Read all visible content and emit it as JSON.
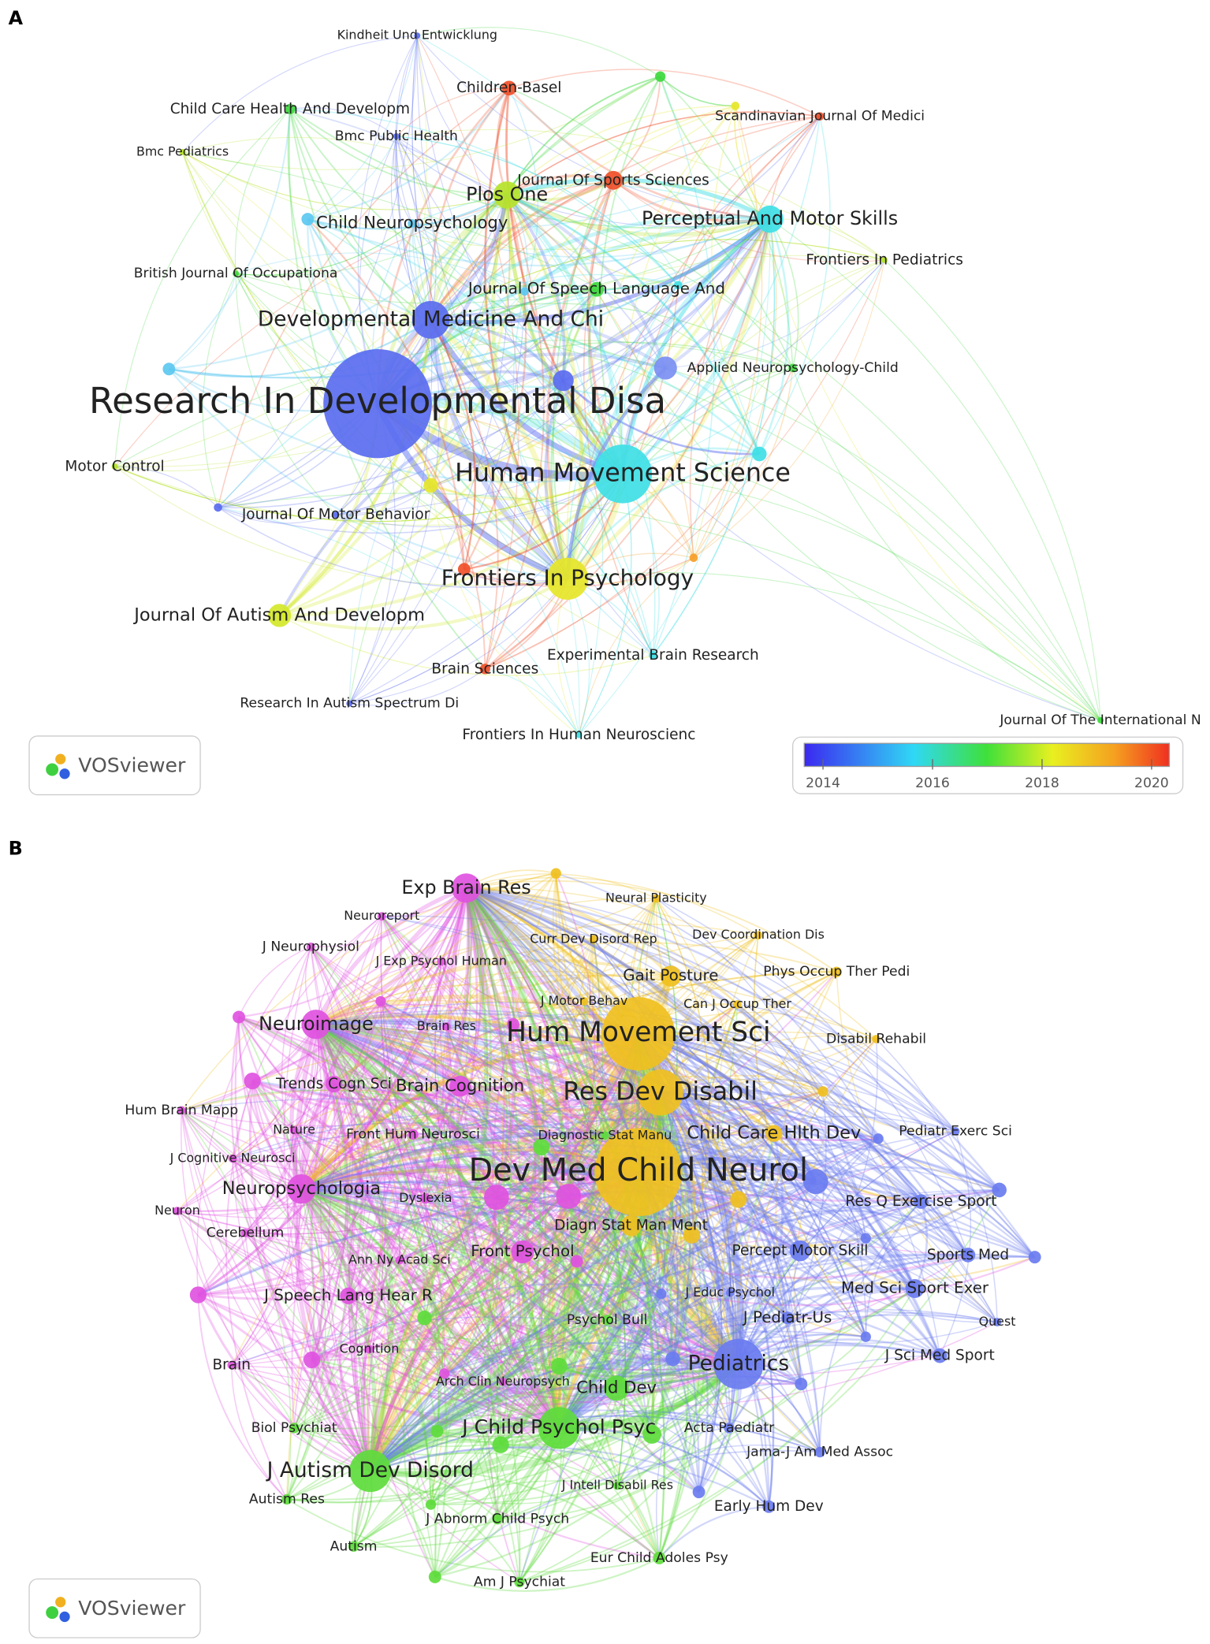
{
  "panels": [
    {
      "label": "A",
      "logo": "VOSviewer",
      "colorbar_ticks": [
        "2014",
        "2016",
        "2018",
        "2020"
      ],
      "nodes": [
        {
          "label": "Kindheit Und Entwicklung"
        },
        {
          "label": "Children-Basel"
        },
        {
          "label": "Child Care Health And Developm"
        },
        {
          "label": "Bmc Public Health"
        },
        {
          "label": "Bmc Pediatrics"
        },
        {
          "label": "Scandinavian Journal Of Medici"
        },
        {
          "label": "Plos One"
        },
        {
          "label": "Journal Of Sports Sciences"
        },
        {
          "label": "Perceptual And Motor Skills"
        },
        {
          "label": "Child Neuropsychology"
        },
        {
          "label": "Frontiers In Pediatrics"
        },
        {
          "label": "British Journal Of Occupationa"
        },
        {
          "label": "Journal Of Speech Language And"
        },
        {
          "label": "Developmental Medicine And Chi"
        },
        {
          "label": "Applied Neuropsychology-Child"
        },
        {
          "label": "Research In Developmental Disa"
        },
        {
          "label": "Motor Control"
        },
        {
          "label": "Human Movement Science"
        },
        {
          "label": "Journal Of Motor Behavior"
        },
        {
          "label": "Frontiers In Psychology"
        },
        {
          "label": "Journal Of Autism And Developm"
        },
        {
          "label": "Experimental Brain Research"
        },
        {
          "label": "Brain Sciences"
        },
        {
          "label": "Research In Autism Spectrum Di"
        },
        {
          "label": "Frontiers In Human Neuroscienc"
        },
        {
          "label": "Journal Of The International N"
        }
      ]
    },
    {
      "label": "B",
      "logo": "VOSviewer",
      "nodes": [
        {
          "label": "Exp Brain Res"
        },
        {
          "label": "Neuroreport"
        },
        {
          "label": "J Neurophysiol"
        },
        {
          "label": "J Exp Psychol Human"
        },
        {
          "label": "Neuroimage"
        },
        {
          "label": "Brain Res"
        },
        {
          "label": "Brain Cognition"
        },
        {
          "label": "Trends Cogn Sci"
        },
        {
          "label": "Hum Brain Mapp"
        },
        {
          "label": "Nature"
        },
        {
          "label": "Front Hum Neurosci"
        },
        {
          "label": "J Cognitive Neurosci"
        },
        {
          "label": "Neuropsychologia"
        },
        {
          "label": "Dyslexia"
        },
        {
          "label": "Neuron"
        },
        {
          "label": "Cerebellum"
        },
        {
          "label": "Ann Ny Acad Sci"
        },
        {
          "label": "Front Psychol"
        },
        {
          "label": "J Speech Lang Hear R"
        },
        {
          "label": "Brain"
        },
        {
          "label": "Cognition"
        },
        {
          "label": "Arch Clin Neuropsych"
        },
        {
          "label": "Neural Plasticity"
        },
        {
          "label": "Curr Dev Disord Rep"
        },
        {
          "label": "Dev Coordination Dis"
        },
        {
          "label": "Gait Posture"
        },
        {
          "label": "Phys Occup Ther Pedi"
        },
        {
          "label": "J Motor Behav"
        },
        {
          "label": "Can J Occup Ther"
        },
        {
          "label": "Hum Movement Sci"
        },
        {
          "label": "Disabil Rehabil"
        },
        {
          "label": "Res Dev Disabil"
        },
        {
          "label": "Child Care Hlth Dev"
        },
        {
          "label": "Dev Med Child Neurol"
        },
        {
          "label": "Diagn Stat Man Ment"
        },
        {
          "label": "Diagnostic Stat Manu"
        },
        {
          "label": "Psychol Bull"
        },
        {
          "label": "Child Dev"
        },
        {
          "label": "J Child Psychol Psyc"
        },
        {
          "label": "J Autism Dev Disord"
        },
        {
          "label": "Biol Psychiat"
        },
        {
          "label": "Autism Res"
        },
        {
          "label": "J Intell Disabil Res"
        },
        {
          "label": "J Abnorm Child Psych"
        },
        {
          "label": "Autism"
        },
        {
          "label": "Eur Child Adoles Psy"
        },
        {
          "label": "Am J Psychiat"
        },
        {
          "label": "Pediatr Exerc Sci"
        },
        {
          "label": "Res Q Exercise Sport"
        },
        {
          "label": "Percept Motor Skill"
        },
        {
          "label": "Sports Med"
        },
        {
          "label": "J Educ Psychol"
        },
        {
          "label": "Med Sci Sport Exer"
        },
        {
          "label": "J Pediatr-Us"
        },
        {
          "label": "Quest"
        },
        {
          "label": "J Sci Med Sport"
        },
        {
          "label": "Pediatrics"
        },
        {
          "label": "Acta Paediatr"
        },
        {
          "label": "Jama-J Am Med Assoc"
        },
        {
          "label": "Early Hum Dev"
        }
      ]
    }
  ]
}
